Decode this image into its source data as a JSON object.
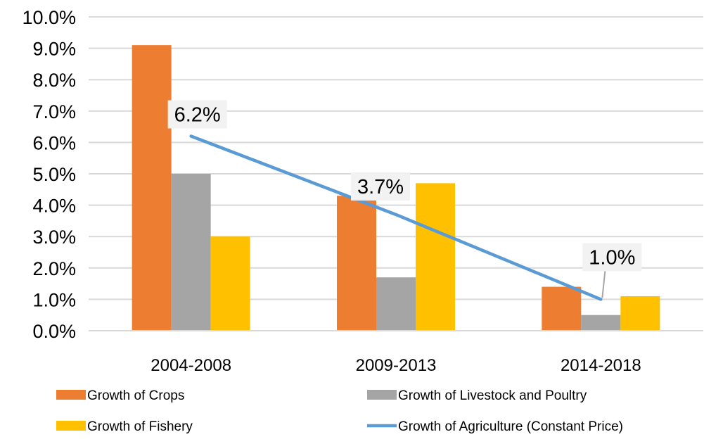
{
  "chart_data": {
    "type": "bar",
    "title": "",
    "xlabel": "",
    "ylabel": "",
    "categories": [
      "2004-2008",
      "2009-2013",
      "2014-2018"
    ],
    "ylim": [
      0,
      10
    ],
    "yticks": [
      0,
      1,
      2,
      3,
      4,
      5,
      6,
      7,
      8,
      9,
      10
    ],
    "ytick_labels": [
      "0.0%",
      "1.0%",
      "2.0%",
      "3.0%",
      "4.0%",
      "5.0%",
      "6.0%",
      "7.0%",
      "8.0%",
      "9.0%",
      "10.0%"
    ],
    "grid": true,
    "legend_position": "bottom",
    "series": [
      {
        "name": "Growth of Crops",
        "type": "bar",
        "color": "#ED7D31",
        "values": [
          9.1,
          4.3,
          1.4
        ]
      },
      {
        "name": "Growth of Livestock and Poultry",
        "type": "bar",
        "color": "#A5A5A5",
        "values": [
          5.0,
          1.7,
          0.5
        ]
      },
      {
        "name": "Growth of Fishery",
        "type": "bar",
        "color": "#FFC000",
        "values": [
          3.0,
          4.7,
          1.1
        ]
      },
      {
        "name": "Growth of Agriculture  (Constant Price)",
        "type": "line",
        "color": "#5B9BD5",
        "values": [
          6.2,
          3.7,
          1.0
        ],
        "data_labels": [
          "6.2%",
          "3.7%",
          "1.0%"
        ]
      }
    ]
  }
}
